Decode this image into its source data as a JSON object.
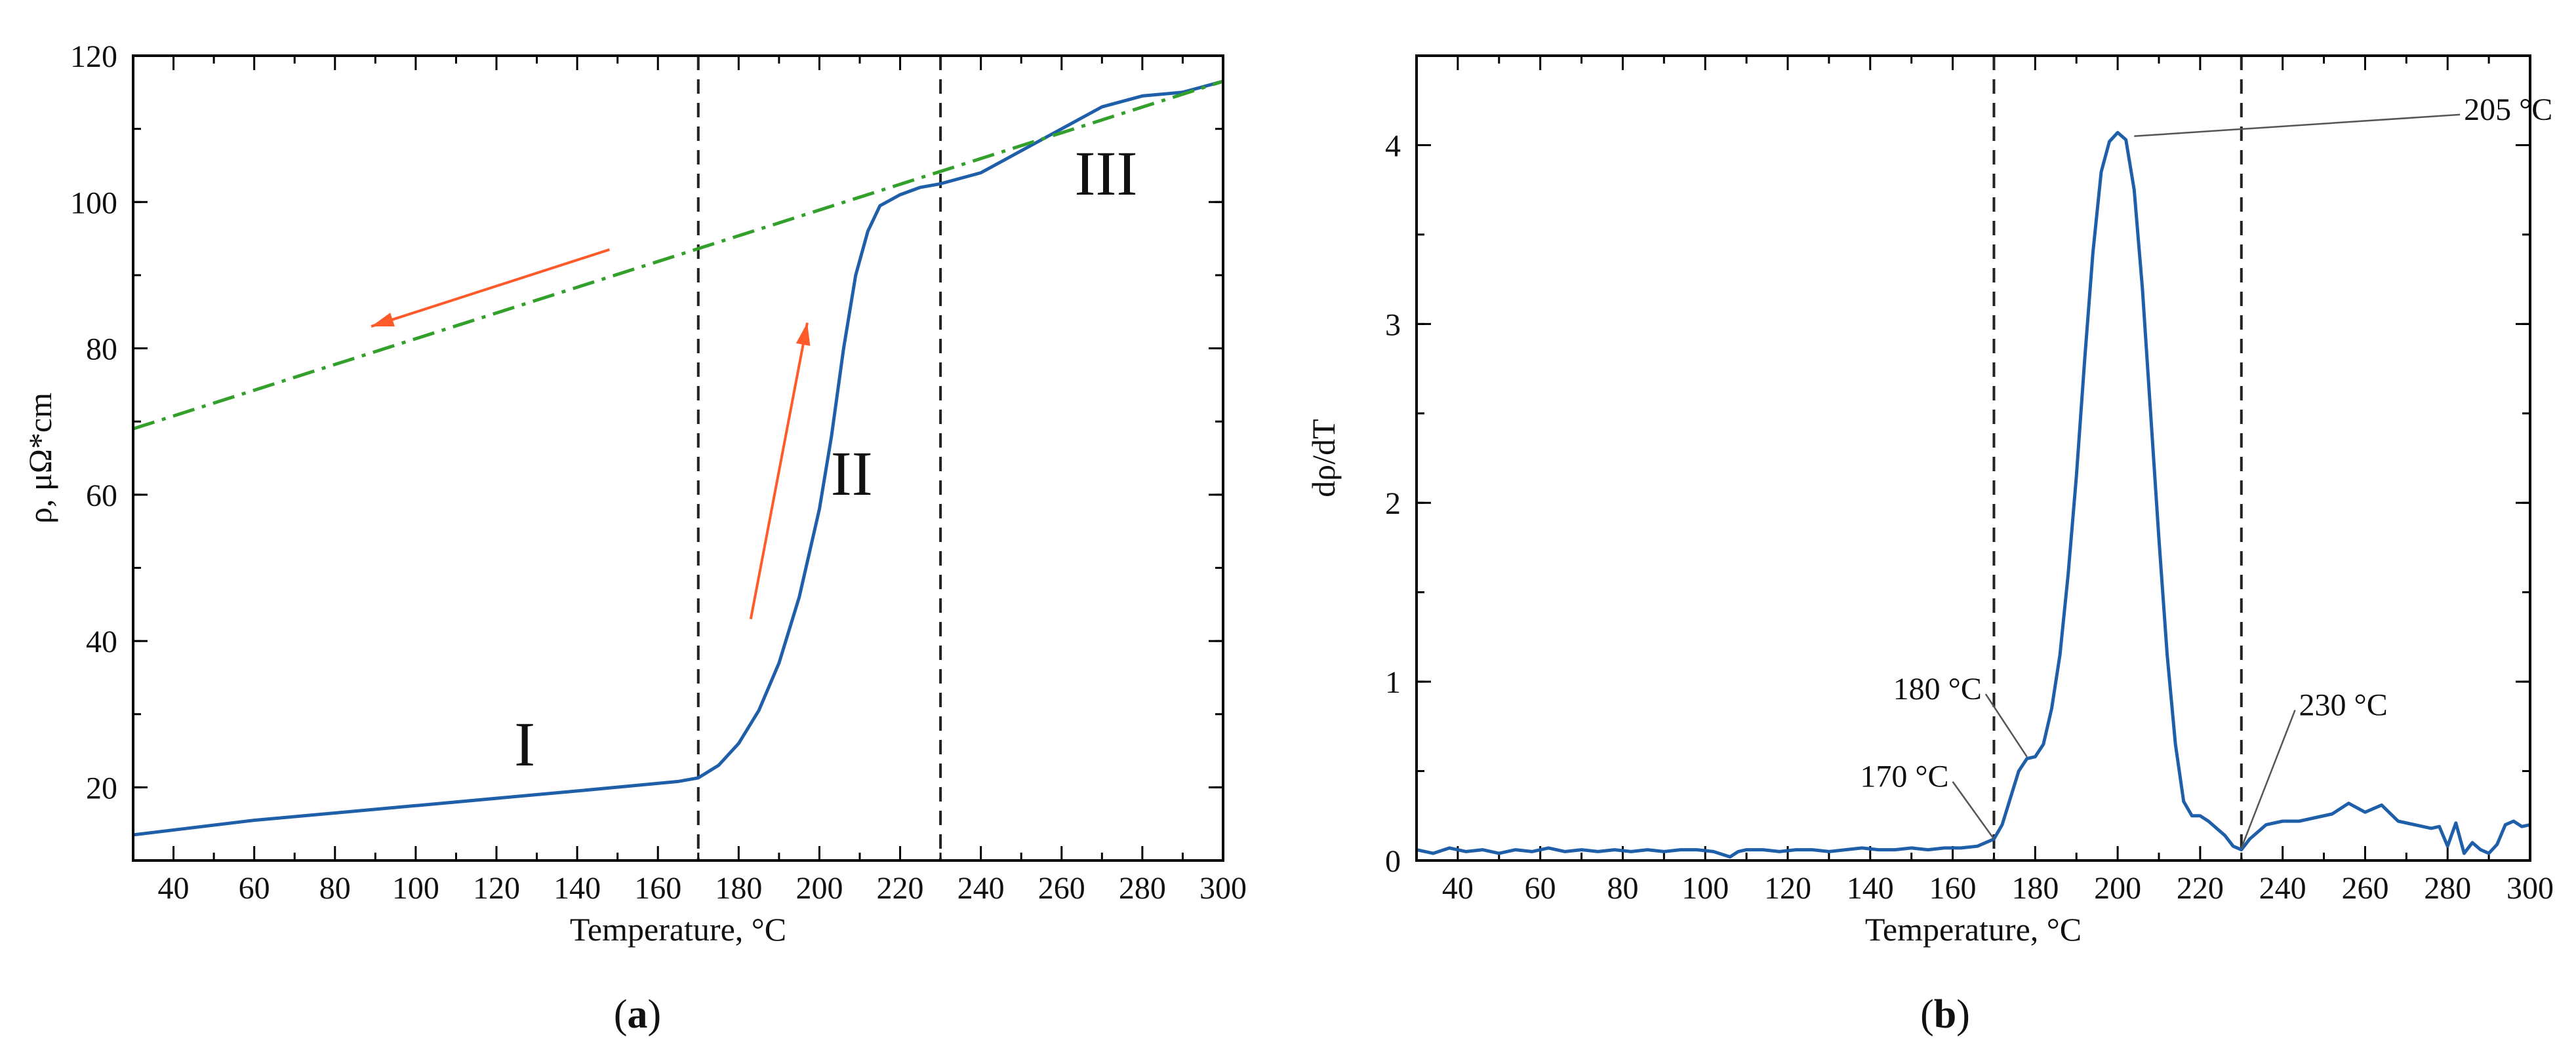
{
  "colors": {
    "curve": "#1f5ea8",
    "trend": "#33a02c",
    "arrow": "#ff5a2a",
    "guide": "#222222",
    "axis": "#000000"
  },
  "chart_data": [
    {
      "type": "line",
      "panel_label": "(a)",
      "panel_letter": "a",
      "xlabel": "Temperature, °C",
      "ylabel": "ρ, μΩ*cm",
      "xlim": [
        30,
        300
      ],
      "ylim": [
        10,
        120
      ],
      "xticks": [
        40,
        60,
        80,
        100,
        120,
        140,
        160,
        180,
        200,
        220,
        240,
        260,
        280,
        300
      ],
      "yticks": [
        20,
        40,
        60,
        80,
        100,
        120
      ],
      "vlines": [
        170,
        230
      ],
      "series": [
        {
          "name": "resistivity",
          "style": "solid",
          "x": [
            30,
            60,
            100,
            140,
            165,
            170,
            175,
            180,
            185,
            190,
            195,
            200,
            203,
            206,
            209,
            212,
            215,
            220,
            225,
            230,
            240,
            250,
            260,
            270,
            280,
            290,
            300
          ],
          "y": [
            13.5,
            15.5,
            17.5,
            19.5,
            20.8,
            21.3,
            23,
            26,
            30.5,
            37,
            46,
            58,
            68,
            80,
            90,
            96,
            99.5,
            101,
            102,
            102.5,
            104,
            107,
            110,
            113,
            114.5,
            115,
            116.5
          ]
        },
        {
          "name": "linear fit",
          "style": "dash-dot",
          "x": [
            30,
            300
          ],
          "y": [
            69,
            116.5
          ]
        }
      ],
      "regions": [
        {
          "text": "I",
          "x": 127,
          "y": 23
        },
        {
          "text": "II",
          "x": 208,
          "y": 60
        },
        {
          "text": "III",
          "x": 271,
          "y": 101
        }
      ],
      "arrows": [
        {
          "from": [
            148,
            93.5
          ],
          "to": [
            89,
            83
          ]
        },
        {
          "from": [
            183,
            43
          ],
          "to": [
            197,
            83.5
          ]
        }
      ]
    },
    {
      "type": "line",
      "panel_label": "(b)",
      "panel_letter": "b",
      "xlabel": "Temperature, °C",
      "ylabel": "dρ/dT",
      "xlim": [
        30,
        300
      ],
      "ylim": [
        0,
        4.5
      ],
      "xticks": [
        40,
        60,
        80,
        100,
        120,
        140,
        160,
        180,
        200,
        220,
        240,
        260,
        280,
        300
      ],
      "yticks": [
        0,
        1,
        2,
        3,
        4
      ],
      "vlines": [
        170,
        230
      ],
      "series": [
        {
          "name": "derivative",
          "style": "solid",
          "x": [
            30,
            34,
            38,
            42,
            46,
            50,
            54,
            58,
            62,
            66,
            70,
            74,
            78,
            82,
            86,
            90,
            94,
            98,
            102,
            106,
            108,
            110,
            114,
            118,
            122,
            126,
            130,
            134,
            138,
            142,
            146,
            150,
            154,
            158,
            162,
            166,
            168,
            170,
            172,
            174,
            176,
            178,
            180,
            182,
            184,
            186,
            188,
            190,
            192,
            194,
            196,
            198,
            200,
            202,
            204,
            206,
            208,
            210,
            212,
            214,
            216,
            218,
            220,
            222,
            224,
            226,
            228,
            230,
            232,
            236,
            240,
            244,
            248,
            252,
            256,
            260,
            264,
            268,
            272,
            276,
            278,
            280,
            282,
            284,
            286,
            288,
            290,
            292,
            294,
            296,
            298,
            300
          ],
          "y": [
            0.06,
            0.04,
            0.07,
            0.05,
            0.06,
            0.04,
            0.06,
            0.05,
            0.07,
            0.05,
            0.06,
            0.05,
            0.06,
            0.05,
            0.06,
            0.05,
            0.06,
            0.06,
            0.05,
            0.02,
            0.05,
            0.06,
            0.06,
            0.05,
            0.06,
            0.06,
            0.05,
            0.06,
            0.07,
            0.06,
            0.06,
            0.07,
            0.06,
            0.07,
            0.07,
            0.08,
            0.1,
            0.12,
            0.2,
            0.35,
            0.5,
            0.57,
            0.58,
            0.65,
            0.85,
            1.15,
            1.6,
            2.15,
            2.8,
            3.4,
            3.85,
            4.02,
            4.07,
            4.03,
            3.75,
            3.2,
            2.5,
            1.8,
            1.15,
            0.65,
            0.33,
            0.25,
            0.25,
            0.22,
            0.18,
            0.14,
            0.08,
            0.06,
            0.12,
            0.2,
            0.22,
            0.22,
            0.24,
            0.26,
            0.32,
            0.27,
            0.31,
            0.22,
            0.2,
            0.18,
            0.19,
            0.08,
            0.21,
            0.04,
            0.1,
            0.06,
            0.04,
            0.09,
            0.2,
            0.22,
            0.19,
            0.2
          ]
        }
      ],
      "annotations": [
        {
          "text": "205 °C",
          "point": [
            204,
            4.05
          ],
          "label": [
            283,
            4.2
          ]
        },
        {
          "text": "180 °C",
          "point": [
            178,
            0.58
          ],
          "label": [
            168,
            0.96
          ]
        },
        {
          "text": "170 °C",
          "point": [
            170,
            0.12
          ],
          "label": [
            160,
            0.47
          ]
        },
        {
          "text": "230 °C",
          "point": [
            230,
            0.07
          ],
          "label": [
            243,
            0.87
          ]
        }
      ]
    }
  ]
}
